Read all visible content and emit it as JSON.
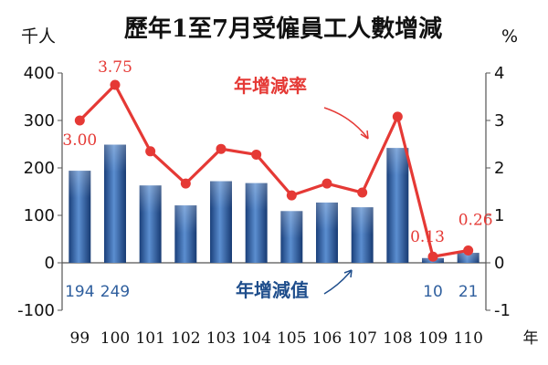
{
  "chart_data": {
    "type": "bar+line",
    "title": "歷年1至7月受僱員工人數增減",
    "y_left_unit": "千人",
    "y_right_unit": "%",
    "x_unit": "年",
    "categories": [
      "99",
      "100",
      "101",
      "102",
      "103",
      "104",
      "105",
      "106",
      "107",
      "108",
      "109",
      "110"
    ],
    "y_left_ticks": [
      "400",
      "300",
      "200",
      "100",
      "0",
      "-100"
    ],
    "y_right_ticks": [
      "4",
      "3",
      "2",
      "1",
      "0",
      "-1"
    ],
    "ylim_left": [
      -100,
      400
    ],
    "ylim_right": [
      -1,
      4
    ],
    "series": [
      {
        "name": "年增減值",
        "type": "bar",
        "axis": "left",
        "values": [
          194,
          249,
          163,
          121,
          172,
          168,
          109,
          127,
          117,
          242,
          10,
          21
        ],
        "labels": [
          "194",
          "249",
          "",
          "",
          "",
          "",
          "",
          "",
          "",
          "",
          "10",
          "21"
        ]
      },
      {
        "name": "年增減率",
        "type": "line",
        "axis": "right",
        "values": [
          3.0,
          3.75,
          2.35,
          1.67,
          2.4,
          2.28,
          1.42,
          1.67,
          1.48,
          3.08,
          0.13,
          0.26
        ],
        "labels": [
          "3.00",
          "3.75",
          "",
          "",
          "",
          "",
          "",
          "",
          "",
          "",
          "0.13",
          "0.26"
        ]
      }
    ],
    "colors": {
      "bar": "#2f5f9e",
      "line": "#e53935"
    },
    "grid": false
  }
}
